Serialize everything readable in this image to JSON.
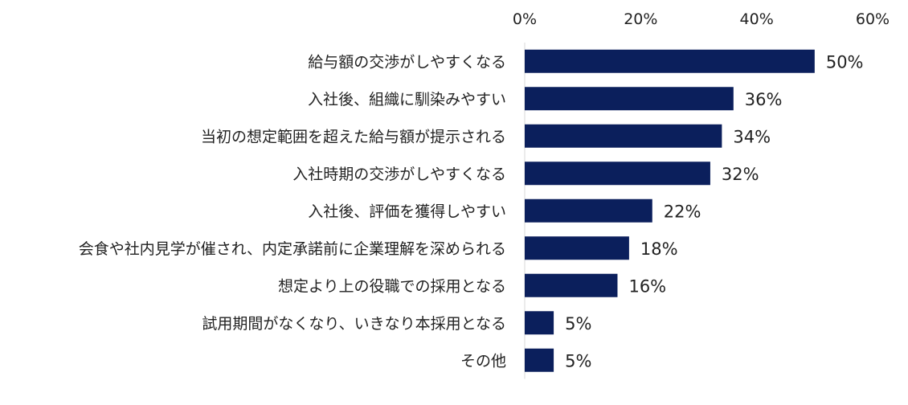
{
  "chart_data": {
    "type": "bar",
    "orientation": "horizontal",
    "categories": [
      "給与額の交渉がしやすくなる",
      "入社後、組織に馴染みやすい",
      "当初の想定範囲を超えた給与額が提示される",
      "入社時期の交渉がしやすくなる",
      "入社後、評価を獲得しやすい",
      "会食や社内見学が催され、内定承諾前に企業理解を深められる",
      "想定より上の役職での採用となる",
      "試用期間がなくなり、いきなり本採用となる",
      "その他"
    ],
    "values": [
      50,
      36,
      34,
      32,
      22,
      18,
      16,
      5,
      5
    ],
    "data_labels": [
      "50%",
      "36%",
      "34%",
      "32%",
      "22%",
      "18%",
      "16%",
      "5%",
      "5%"
    ],
    "xlim": [
      0,
      60
    ],
    "x_ticks": [
      0,
      20,
      40,
      60
    ],
    "x_tick_labels": [
      "0%",
      "20%",
      "40%",
      "60%"
    ],
    "x_axis_position": "top",
    "grid": false,
    "legend": "none",
    "bar_color": "#0b1f5c"
  }
}
